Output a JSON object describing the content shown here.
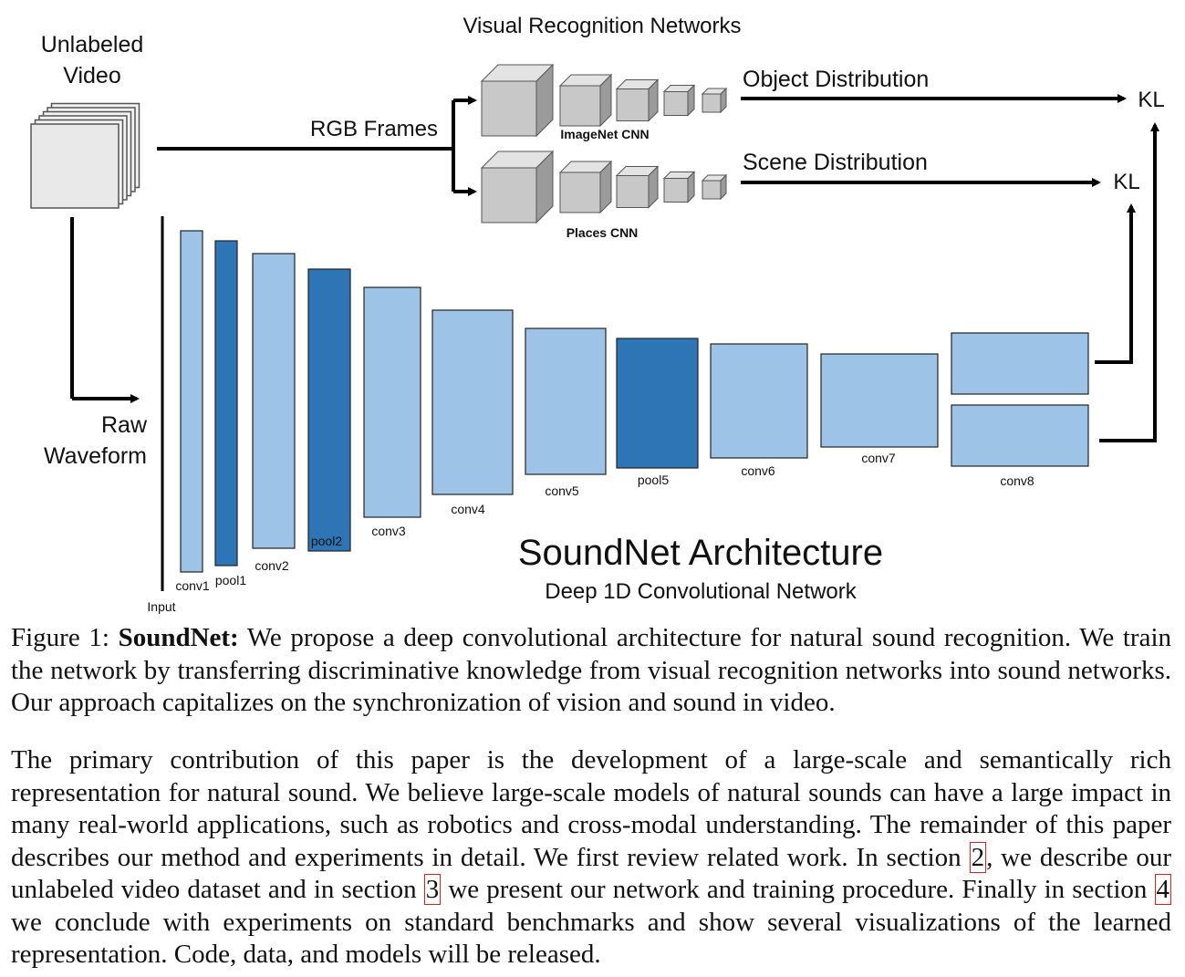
{
  "figure": {
    "unlabeled_video": [
      "Unlabeled",
      "Video"
    ],
    "visual_networks_title": "Visual Recognition Networks",
    "rgb_frames": "RGB Frames",
    "imagenet_cnn": "ImageNet CNN",
    "places_cnn": "Places CNN",
    "object_distribution": "Object Distribution",
    "scene_distribution": "Scene Distribution",
    "kl_top": "KL",
    "kl_bottom": "KL",
    "raw_waveform": [
      "Raw",
      "Waveform"
    ],
    "input_label": "Input",
    "title": "SoundNet Architecture",
    "subtitle": "Deep 1D Convolutional Network",
    "layers": [
      {
        "name": "conv1",
        "kind": "conv"
      },
      {
        "name": "pool1",
        "kind": "pool"
      },
      {
        "name": "conv2",
        "kind": "conv"
      },
      {
        "name": "pool2",
        "kind": "pool"
      },
      {
        "name": "conv3",
        "kind": "conv"
      },
      {
        "name": "conv4",
        "kind": "conv"
      },
      {
        "name": "conv5",
        "kind": "conv"
      },
      {
        "name": "pool5",
        "kind": "pool"
      },
      {
        "name": "conv6",
        "kind": "conv"
      },
      {
        "name": "conv7",
        "kind": "conv"
      },
      {
        "name": "conv8",
        "kind": "conv"
      }
    ],
    "colors": {
      "conv": "#9dc3e6",
      "pool": "#2e75b6",
      "cube": "#c8c8c8"
    }
  },
  "caption": {
    "prefix": "Figure 1: ",
    "bold": "SoundNet:",
    "text": " We propose a deep convolutional architecture for natural sound recognition. We train the network by transferring discriminative knowledge from visual recognition networks into sound networks. Our approach capitalizes on the synchronization of vision and sound in video."
  },
  "paragraph": {
    "part1": "The primary contribution of this paper is the development of a large-scale and semantically rich representation for natural sound. We believe large-scale models of natural sounds can have a large impact in many real-world applications, such as robotics and cross-modal understanding.  The remainder of this paper describes our method and experiments in detail. We first review related work. In section ",
    "ref1": "2",
    "part2": ", we describe our unlabeled video dataset and in section ",
    "ref2": "3",
    "part3": " we present our network and training procedure. Finally in section ",
    "ref3": "4",
    "part4": " we conclude with experiments on standard benchmarks and show several visualizations of the learned representation. Code, data, and models will be released."
  }
}
